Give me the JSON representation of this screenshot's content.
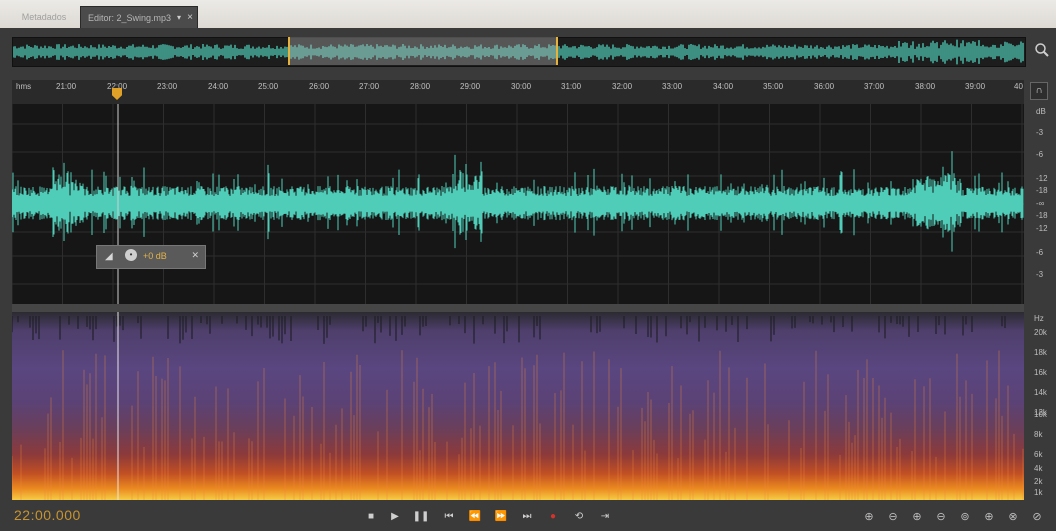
{
  "tabs": {
    "metadata": "Metadados",
    "editor": "Editor: 2_Swing.mp3",
    "dropdown_icon": "▾",
    "close_icon": "×"
  },
  "ruler": {
    "unit": "hms",
    "labels": [
      "21:00",
      "22:00",
      "23:00",
      "24:00",
      "25:00",
      "26:00",
      "27:00",
      "28:00",
      "29:00",
      "30:00",
      "31:00",
      "32:00",
      "33:00",
      "34:00",
      "35:00",
      "36:00",
      "37:00",
      "38:00",
      "39:00",
      "40"
    ]
  },
  "db_scale": {
    "unit": "dB",
    "labels": [
      "-3",
      "-6",
      "-12",
      "-18",
      "-∞",
      "-18",
      "-12",
      "-6",
      "-3"
    ]
  },
  "hud": {
    "gain": "+0 dB"
  },
  "hz_scale": {
    "unit": "Hz",
    "labels": [
      "20k",
      "18k",
      "16k",
      "14k",
      "12k",
      "10k",
      "8k",
      "6k",
      "4k",
      "2k",
      "1k"
    ]
  },
  "transport": {
    "timecode": "22:00.000"
  },
  "colors": {
    "waveform": "#4fcdb8",
    "selection_border": "#e7b23b",
    "timecode": "#c8942f"
  },
  "icons": {
    "zoom_icon": "magnifier",
    "headphones_icon": "headphones"
  }
}
